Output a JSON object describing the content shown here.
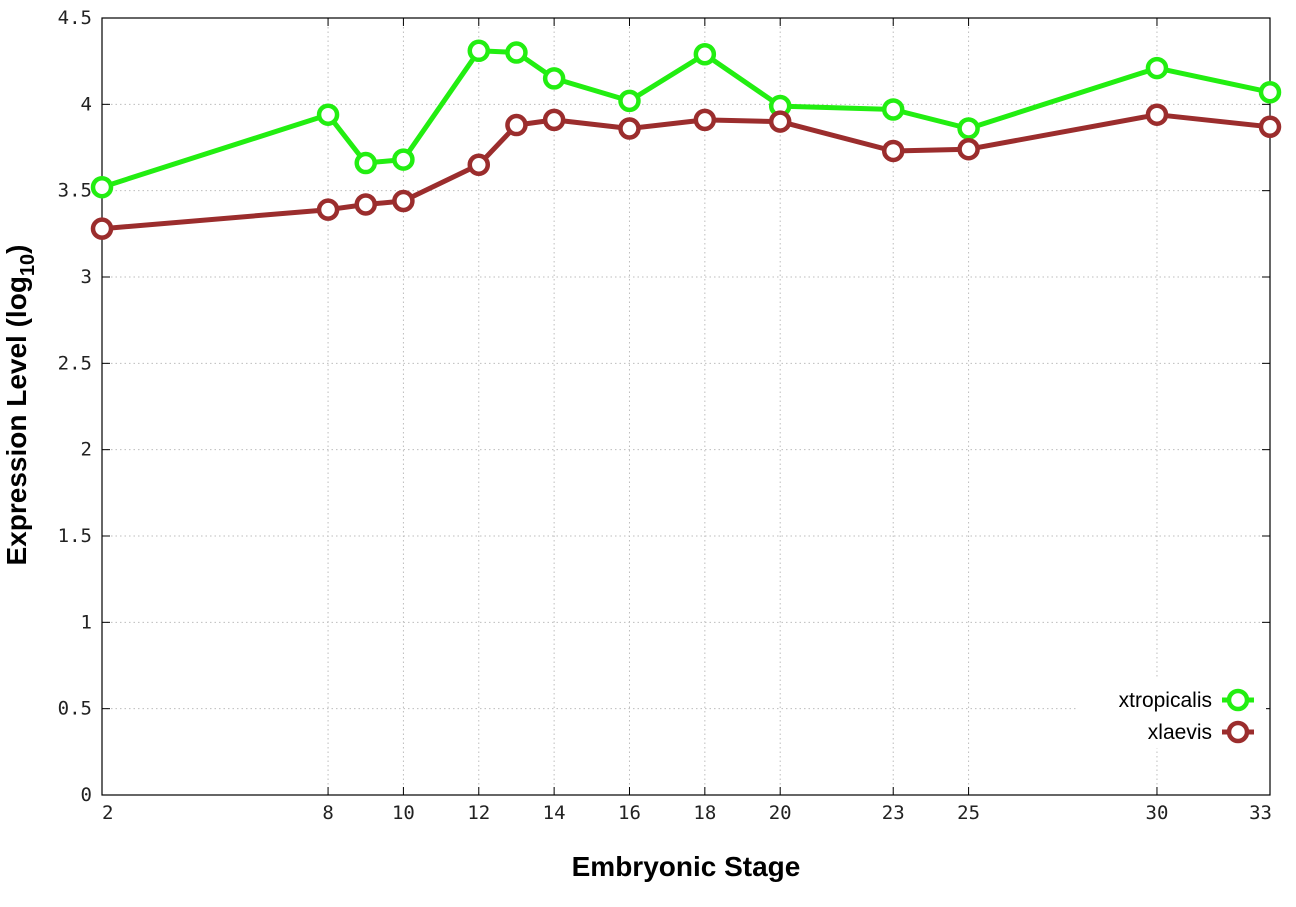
{
  "chart_data": {
    "type": "line",
    "xlabel": "Embryonic Stage",
    "ylabel": "Expression Level (log",
    "ylabel_sub": "10",
    "ylabel_close": ")",
    "xlim": [
      2,
      33
    ],
    "ylim": [
      0,
      4.5
    ],
    "x_ticks": [
      2,
      8,
      10,
      12,
      14,
      16,
      18,
      20,
      23,
      25,
      30,
      33
    ],
    "x_tick_labels": [
      "2",
      "8",
      "10",
      "12",
      "14",
      "16",
      "18",
      "20",
      "23",
      "25",
      "30",
      "33"
    ],
    "y_ticks": [
      0,
      0.5,
      1,
      1.5,
      2,
      2.5,
      3,
      3.5,
      4,
      4.5
    ],
    "y_tick_labels": [
      "0",
      "0.5",
      "1",
      "1.5",
      "2",
      "2.5",
      "3",
      "3.5",
      "4",
      "4.5"
    ],
    "grid": true,
    "legend_position": "bottom-right",
    "series": [
      {
        "name": "xtropicalis",
        "color": "#22ee11",
        "x": [
          2,
          8,
          9,
          10,
          12,
          13,
          14,
          16,
          18,
          20,
          23,
          25,
          30,
          33
        ],
        "values": [
          3.52,
          3.94,
          3.66,
          3.68,
          4.31,
          4.3,
          4.15,
          4.02,
          4.29,
          3.99,
          3.97,
          3.86,
          4.21,
          4.07
        ]
      },
      {
        "name": "xlaevis",
        "color": "#9b2d2d",
        "x": [
          2,
          8,
          9,
          10,
          12,
          13,
          14,
          16,
          18,
          20,
          23,
          25,
          30,
          33
        ],
        "values": [
          3.28,
          3.39,
          3.42,
          3.44,
          3.65,
          3.88,
          3.91,
          3.86,
          3.91,
          3.9,
          3.73,
          3.74,
          3.94,
          3.87
        ]
      }
    ]
  }
}
